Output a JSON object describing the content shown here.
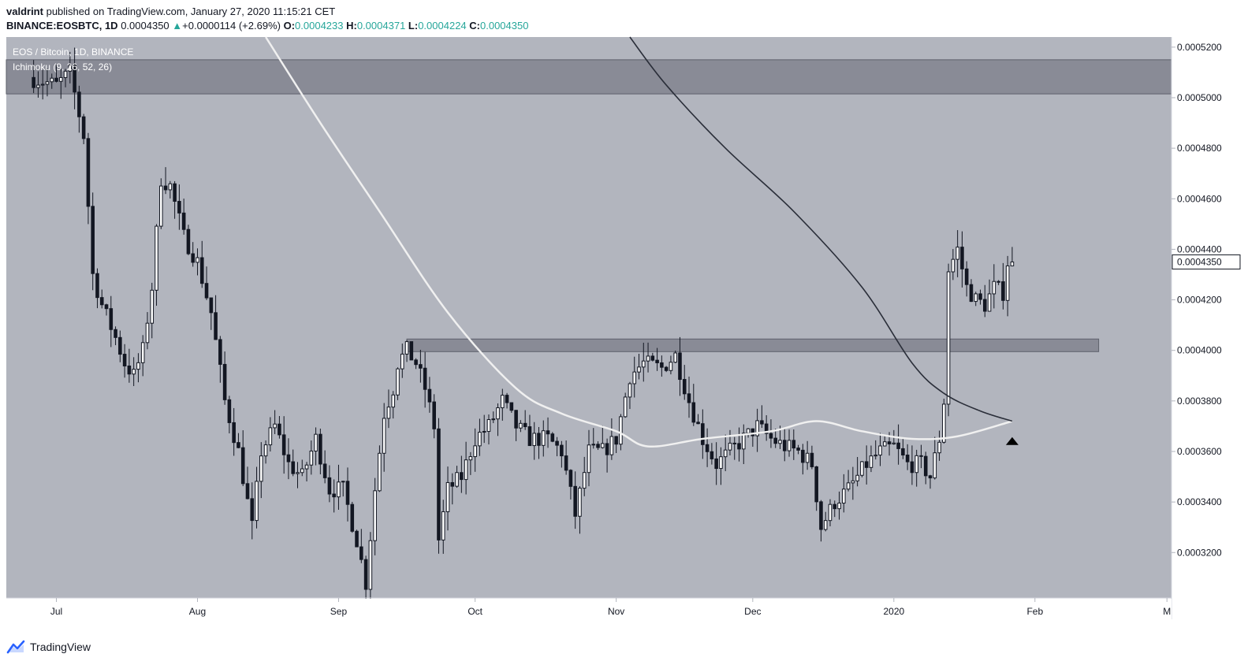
{
  "header": {
    "author": "valdrint",
    "published_text": "published on TradingView.com, January 27, 2020 11:15:21 CET",
    "symbol": "BINANCE:EOSBTC, 1D",
    "last": "0.0004350",
    "change_arrow": "▲",
    "change": "+0.0000114 (+2.69%)",
    "open_label": "O:",
    "open": "0.0004233",
    "high_label": "H:",
    "high": "0.0004371",
    "low_label": "L:",
    "low": "0.0004224",
    "close_label": "C:",
    "close": "0.0004350"
  },
  "legend": {
    "title": "EOS / Bitcoin, 1D, BINANCE",
    "indicator": "Ichimoku (9, 26, 52, 26)"
  },
  "footer": {
    "brand": "TradingView",
    "logo_icon": "tradingview-logo-icon"
  },
  "colors": {
    "plot_bg": "#b2b5be",
    "bull": "#ffffff",
    "bear": "#131722",
    "zone": "#787b86",
    "fast_ma": "#f0f0f0",
    "slow_ma": "#2a2e39",
    "accent": "#26a69a"
  },
  "chart_data": {
    "type": "candlestick",
    "title": "EOS / Bitcoin, 1D, BINANCE",
    "x_tick_labels": [
      "Jul",
      "Aug",
      "Sep",
      "Oct",
      "Nov",
      "Dec",
      "2020",
      "Feb",
      "M"
    ],
    "x_tick_dates": [
      "2019-07-01",
      "2019-08-01",
      "2019-09-01",
      "2019-10-01",
      "2019-11-01",
      "2019-12-01",
      "2020-01-01",
      "2020-02-01",
      "2020-03-01"
    ],
    "x_range": [
      "2019-06-20",
      "2020-03-02"
    ],
    "y_tick_labels": [
      "0.0005200",
      "0.0005000",
      "0.0004800",
      "0.0004600",
      "0.0004400",
      "0.0004200",
      "0.0004000",
      "0.0003800",
      "0.0003600",
      "0.0003400",
      "0.0003200"
    ],
    "ylim": [
      0.000302,
      0.000524
    ],
    "last_price_label": "0.0004350",
    "last_price": 0.000435,
    "zones": [
      {
        "name": "resistance",
        "from": "2019-06-20",
        "to": "2020-03-02",
        "y_low": 0.0005015,
        "y_high": 0.000515
      },
      {
        "name": "support",
        "from": "2019-09-16",
        "to": "2020-02-15",
        "y_low": 0.0003995,
        "y_high": 0.0004045
      }
    ],
    "marker": {
      "shape": "triangle-up",
      "date": "2020-01-27",
      "value": 0.000371
    },
    "grid": false,
    "candle_anchors": [
      [
        "2019-06-26",
        0.000508
      ],
      [
        "2019-07-02",
        0.000505
      ],
      [
        "2019-07-05",
        0.00051
      ],
      [
        "2019-07-08",
        0.000485
      ],
      [
        "2019-07-10",
        0.00043
      ],
      [
        "2019-07-12",
        0.000418
      ],
      [
        "2019-07-15",
        0.000405
      ],
      [
        "2019-07-17",
        0.000395
      ],
      [
        "2019-07-19",
        0.00039
      ],
      [
        "2019-07-21",
        0.0004
      ],
      [
        "2019-07-23",
        0.000425
      ],
      [
        "2019-07-25",
        0.000468
      ],
      [
        "2019-07-27",
        0.000465
      ],
      [
        "2019-07-30",
        0.000445
      ],
      [
        "2019-08-02",
        0.000435
      ],
      [
        "2019-08-05",
        0.000415
      ],
      [
        "2019-08-08",
        0.00038
      ],
      [
        "2019-08-11",
        0.00036
      ],
      [
        "2019-08-14",
        0.00033
      ],
      [
        "2019-08-16",
        0.00036
      ],
      [
        "2019-08-19",
        0.00037
      ],
      [
        "2019-08-22",
        0.000355
      ],
      [
        "2019-08-25",
        0.00035
      ],
      [
        "2019-08-28",
        0.000365
      ],
      [
        "2019-08-31",
        0.000345
      ],
      [
        "2019-09-03",
        0.000345
      ],
      [
        "2019-09-06",
        0.000325
      ],
      [
        "2019-09-08",
        0.000308
      ],
      [
        "2019-09-10",
        0.000345
      ],
      [
        "2019-09-12",
        0.000375
      ],
      [
        "2019-09-14",
        0.000385
      ],
      [
        "2019-09-15",
        0.000395
      ],
      [
        "2019-09-17",
        0.0004
      ],
      [
        "2019-09-19",
        0.000395
      ],
      [
        "2019-09-21",
        0.000385
      ],
      [
        "2019-09-23",
        0.00037
      ],
      [
        "2019-09-24",
        0.000325
      ],
      [
        "2019-09-26",
        0.000345
      ],
      [
        "2019-09-29",
        0.00035
      ],
      [
        "2019-10-02",
        0.000365
      ],
      [
        "2019-10-05",
        0.00037
      ],
      [
        "2019-10-08",
        0.00038
      ],
      [
        "2019-10-11",
        0.00037
      ],
      [
        "2019-10-14",
        0.000365
      ],
      [
        "2019-10-18",
        0.000365
      ],
      [
        "2019-10-21",
        0.00036
      ],
      [
        "2019-10-24",
        0.000335
      ],
      [
        "2019-10-27",
        0.00036
      ],
      [
        "2019-10-30",
        0.00036
      ],
      [
        "2019-11-02",
        0.000365
      ],
      [
        "2019-11-05",
        0.00039
      ],
      [
        "2019-11-08",
        0.000395
      ],
      [
        "2019-11-12",
        0.000393
      ],
      [
        "2019-11-15",
        0.000398
      ],
      [
        "2019-11-18",
        0.00038
      ],
      [
        "2019-11-21",
        0.000365
      ],
      [
        "2019-11-24",
        0.000355
      ],
      [
        "2019-11-27",
        0.00036
      ],
      [
        "2019-11-30",
        0.000365
      ],
      [
        "2019-12-03",
        0.00037
      ],
      [
        "2019-12-06",
        0.000365
      ],
      [
        "2019-12-09",
        0.000362
      ],
      [
        "2019-12-12",
        0.00036
      ],
      [
        "2019-12-15",
        0.000355
      ],
      [
        "2019-12-17",
        0.00033
      ],
      [
        "2019-12-20",
        0.00034
      ],
      [
        "2019-12-23",
        0.000345
      ],
      [
        "2019-12-27",
        0.000355
      ],
      [
        "2019-12-30",
        0.00036
      ],
      [
        "2020-01-02",
        0.000362
      ],
      [
        "2020-01-05",
        0.000355
      ],
      [
        "2020-01-08",
        0.000355
      ],
      [
        "2020-01-10",
        0.00035
      ],
      [
        "2020-01-12",
        0.000365
      ],
      [
        "2020-01-13",
        0.00038
      ],
      [
        "2020-01-14",
        0.000432
      ],
      [
        "2020-01-16",
        0.00044
      ],
      [
        "2020-01-18",
        0.000425
      ],
      [
        "2020-01-20",
        0.00042
      ],
      [
        "2020-01-22",
        0.000418
      ],
      [
        "2020-01-24",
        0.000425
      ],
      [
        "2020-01-26",
        0.000423
      ],
      [
        "2020-01-27",
        0.000435
      ]
    ],
    "fast_ma": [
      [
        "2019-08-16",
        0.000524
      ],
      [
        "2019-08-28",
        0.00049
      ],
      [
        "2019-09-10",
        0.000455
      ],
      [
        "2019-09-25",
        0.000415
      ],
      [
        "2019-10-10",
        0.000385
      ],
      [
        "2019-10-20",
        0.000375
      ],
      [
        "2019-11-01",
        0.000368
      ],
      [
        "2019-11-08",
        0.000362
      ],
      [
        "2019-11-20",
        0.000365
      ],
      [
        "2019-12-05",
        0.000368
      ],
      [
        "2019-12-15",
        0.000372
      ],
      [
        "2019-12-25",
        0.000368
      ],
      [
        "2020-01-05",
        0.000365
      ],
      [
        "2020-01-15",
        0.000366
      ],
      [
        "2020-01-27",
        0.000372
      ]
    ],
    "slow_ma": [
      [
        "2019-11-04",
        0.000524
      ],
      [
        "2019-11-12",
        0.000505
      ],
      [
        "2019-11-25",
        0.00048
      ],
      [
        "2019-12-10",
        0.000455
      ],
      [
        "2019-12-25",
        0.000425
      ],
      [
        "2020-01-05",
        0.000395
      ],
      [
        "2020-01-12",
        0.000383
      ],
      [
        "2020-01-20",
        0.000376
      ],
      [
        "2020-01-27",
        0.000372
      ]
    ]
  }
}
